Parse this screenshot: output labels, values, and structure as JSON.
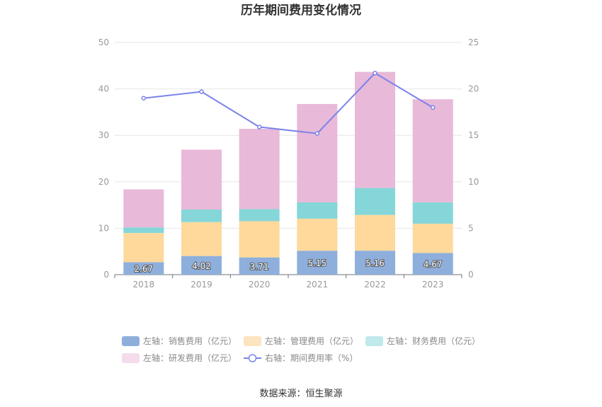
{
  "chart_data": {
    "type": "bar",
    "title": "历年期间费用变化情况",
    "categories": [
      "2018",
      "2019",
      "2020",
      "2021",
      "2022",
      "2023"
    ],
    "stacked": true,
    "y_left": {
      "min": 0,
      "max": 50,
      "ticks": [
        "0",
        "10",
        "20",
        "30",
        "40",
        "50"
      ]
    },
    "y_right": {
      "min": 0,
      "max": 25,
      "ticks": [
        "0",
        "5",
        "10",
        "15",
        "20",
        "25"
      ]
    },
    "grid": true,
    "legend_position": "bottom",
    "series": [
      {
        "name": "左轴：销售费用（亿元）",
        "type": "bar",
        "axis": "left",
        "color": "#8eafdc",
        "values": [
          2.67,
          4.02,
          3.71,
          5.15,
          5.16,
          4.67
        ],
        "labels": [
          "2.67",
          "4.02",
          "3.71",
          "5.15",
          "5.16",
          "4.67"
        ]
      },
      {
        "name": "左轴：管理费用（亿元）",
        "type": "bar",
        "axis": "left",
        "color": "#fed99b",
        "values": [
          6.3,
          7.3,
          7.8,
          6.9,
          7.7,
          6.3
        ]
      },
      {
        "name": "左轴：财务费用（亿元）",
        "type": "bar",
        "axis": "left",
        "color": "#85d6d8",
        "values": [
          1.2,
          2.7,
          2.6,
          3.5,
          5.8,
          4.6
        ]
      },
      {
        "name": "左轴：研发费用（亿元）",
        "type": "bar",
        "axis": "left",
        "color": "#e8b9d9",
        "values": [
          8.2,
          12.9,
          17.3,
          21.2,
          25.0,
          22.2
        ]
      },
      {
        "name": "右轴：期间费用率（%）",
        "type": "line",
        "axis": "right",
        "color": "#7b83ea",
        "values": [
          19.0,
          19.7,
          15.9,
          15.2,
          21.7,
          18.0
        ]
      }
    ],
    "legend_colors": [
      "#8eafdc",
      "#fde4c0",
      "#bfe9ea",
      "#f4dcec",
      "#7b83ea"
    ]
  },
  "source": "数据来源：恒生聚源"
}
